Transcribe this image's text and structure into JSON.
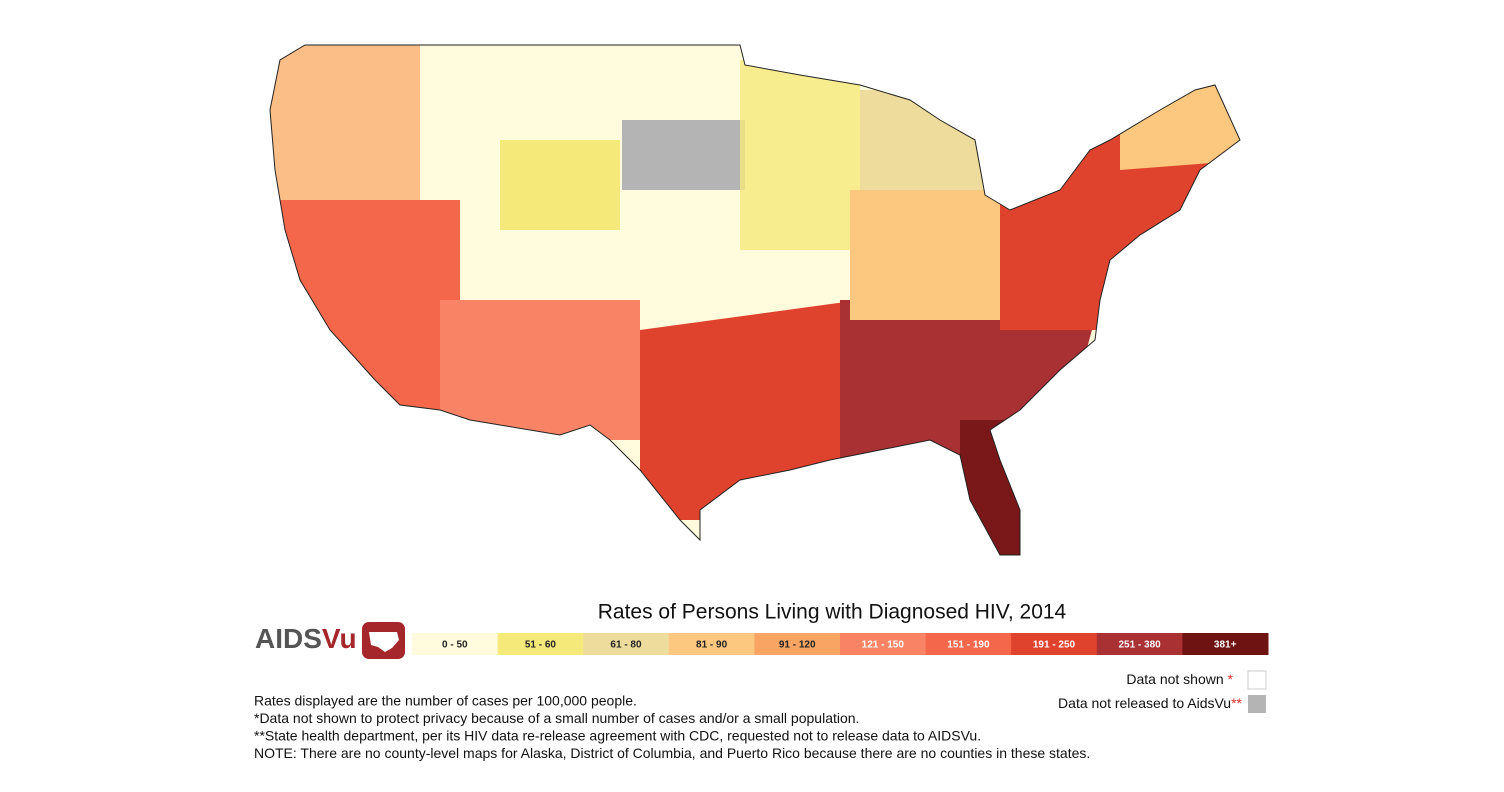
{
  "title": "Rates of Persons Living with Diagnosed HIV, 2014",
  "logo": {
    "part1": "AIDS",
    "part2": "Vu"
  },
  "legend": {
    "bins": [
      {
        "label": "0 - 50",
        "color": "#fffbdc"
      },
      {
        "label": "51 - 60",
        "color": "#f5e97a"
      },
      {
        "label": "61 - 80",
        "color": "#eedc9c"
      },
      {
        "label": "81 - 90",
        "color": "#fcc77e"
      },
      {
        "label": "91 - 120",
        "color": "#f9a463"
      },
      {
        "label": "121 - 150",
        "color": "#f98465"
      },
      {
        "label": "151 - 190",
        "color": "#f4674a"
      },
      {
        "label": "191 - 250",
        "color": "#e0432d"
      },
      {
        "label": "251 - 380",
        "color": "#a93033"
      },
      {
        "label": "381+",
        "color": "#6e1212"
      }
    ]
  },
  "data_not_shown": {
    "label": "Data not shown",
    "marker": "*",
    "color": "#ffffff"
  },
  "data_not_released": {
    "label": "Data not released to AidsVu",
    "marker": "**",
    "color": "#b4b4b4"
  },
  "notes": [
    "Rates displayed are the number of cases per 100,000 people.",
    "*Data not shown to protect privacy because of a small number of cases and/or a small population.",
    "**State health department, per its HIV data re-release agreement with CDC, requested not to release data to AIDSVu.",
    "NOTE: There are no county-level maps for Alaska, District of Columbia, and Puerto Rico because there are no counties in these states."
  ]
}
